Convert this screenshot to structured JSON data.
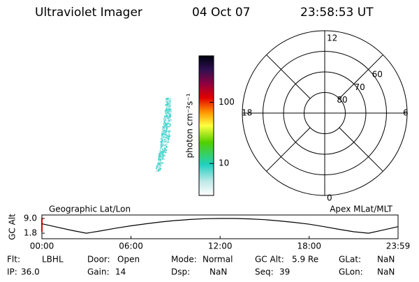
{
  "header": {
    "title": "Ultraviolet Imager",
    "date": "04 Oct 07",
    "time": "23:58:53 UT"
  },
  "colorbar": {
    "label": "photon cm⁻²s⁻¹",
    "log": true,
    "clim": [
      3,
      575
    ],
    "ticks": [
      10,
      100
    ]
  },
  "polar": {
    "mlt_labels": {
      "top": "12",
      "left": "18",
      "right": "6",
      "bottom": "0"
    },
    "rlim": [
      90,
      50
    ],
    "rings": [
      80,
      70,
      60
    ],
    "ring_labels": [
      "80",
      "70",
      "60"
    ]
  },
  "chart_data": {
    "type": "line",
    "title_left": "Geographic Lat/Lon",
    "title_right": "Apex MLat/MLT",
    "ylabel": "GC Alt",
    "xlim": [
      0,
      23.983
    ],
    "ylim": [
      -0.9,
      10.7
    ],
    "xticks": [
      {
        "value": 0,
        "label": "00:00"
      },
      {
        "value": 6,
        "label": "06:00"
      },
      {
        "value": 12,
        "label": "12:00"
      },
      {
        "value": 18,
        "label": "18:00"
      },
      {
        "value": 23.983,
        "label": "23:59"
      }
    ],
    "yticks": [
      {
        "value": 1.8,
        "label": "1.8"
      },
      {
        "value": 9,
        "label": "9.0"
      }
    ],
    "x": [
      0,
      1,
      2,
      3,
      4,
      5,
      6,
      7,
      8,
      9,
      10,
      11,
      12,
      13,
      14,
      15,
      16,
      17,
      18,
      19,
      20,
      21,
      22,
      23,
      23.983
    ],
    "series": [
      {
        "color": "#000000",
        "values": [
          6.4,
          4.8,
          3.2,
          1.8,
          3.0,
          4.3,
          5.4,
          6.4,
          7.3,
          8.0,
          8.5,
          8.9,
          9.0,
          9.0,
          8.8,
          8.4,
          7.8,
          7.1,
          6.2,
          5.0,
          3.7,
          2.5,
          1.8,
          3.4,
          5.0
        ]
      }
    ]
  },
  "footer": {
    "rows": [
      [
        {
          "label": "Flt:",
          "value": "LBHL"
        },
        {
          "label": "Door:",
          "value": "Open"
        },
        {
          "label": "Mode:",
          "value": "Normal"
        },
        {
          "label": "GC Alt:",
          "value": "5.9 Re"
        },
        {
          "label": "GLat:",
          "value": "NaN"
        }
      ],
      [
        {
          "label": "IP:",
          "value": "36.0"
        },
        {
          "label": "Gain:",
          "value": "14"
        },
        {
          "label": "Dsp:",
          "value": "NaN"
        },
        {
          "label": "Seq:",
          "value": "39"
        },
        {
          "label": "GLon:",
          "value": "NaN"
        }
      ]
    ]
  }
}
